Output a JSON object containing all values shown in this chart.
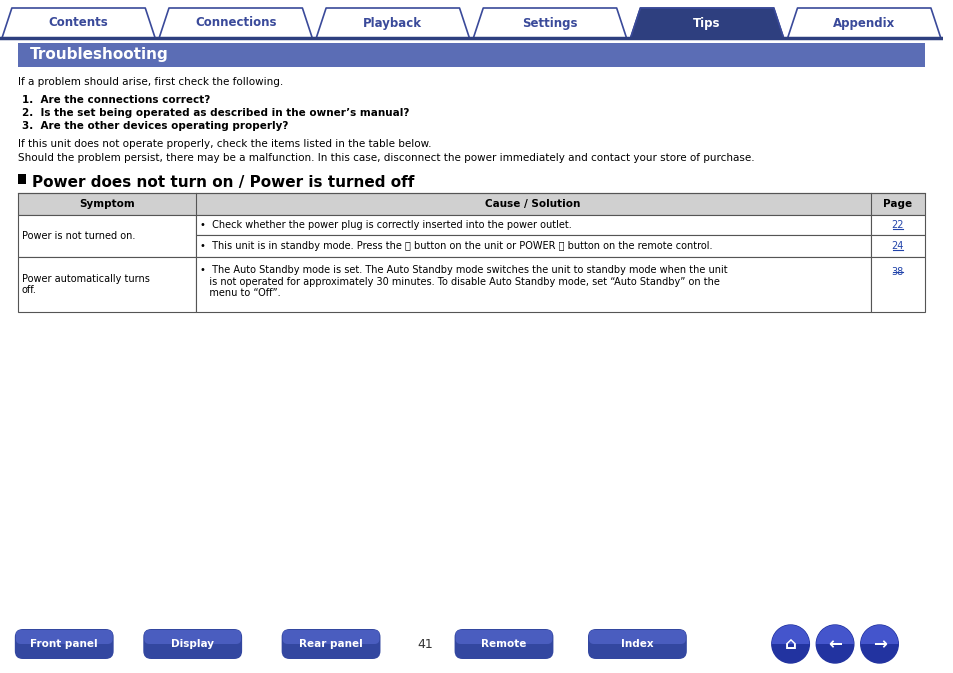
{
  "bg_color": "#ffffff",
  "tab_items": [
    "Contents",
    "Connections",
    "Playback",
    "Settings",
    "Tips",
    "Appendix"
  ],
  "active_tab": "Tips",
  "active_tab_color": "#2e3f7f",
  "inactive_tab_color": "#ffffff",
  "tab_border_color": "#3a4a9a",
  "tab_text_color_active": "#ffffff",
  "tab_text_color_inactive": "#3a4a9a",
  "tab_line_color": "#2e3f7f",
  "section_title": "Troubleshooting",
  "section_title_bg": "#5b6db5",
  "section_title_color": "#ffffff",
  "intro_text": "If a problem should arise, first check the following.",
  "bold_items": [
    "1.  Are the connections correct?",
    "2.  Is the set being operated as described in the owner’s manual?",
    "3.  Are the other devices operating properly?"
  ],
  "para2": "If this unit does not operate properly, check the items listed in the table below.",
  "para3": "Should the problem persist, there may be a malfunction. In this case, disconnect the power immediately and contact your store of purchase.",
  "subsection_title": "Power does not turn on / Power is turned off",
  "table_header": [
    "Symptom",
    "Cause / Solution",
    "Page"
  ],
  "table_header_bg": "#d0d0d0",
  "cause1": "•  Check whether the power plug is correctly inserted into the power outlet.",
  "cause2": "•  This unit is in standby mode. Press the ⏻ button on the unit or POWER ⏻ button on the remote control.",
  "cause3_line1": "•  The Auto Standby mode is set. The Auto Standby mode switches the unit to standby mode when the unit",
  "cause3_line2": "   is not operated for approximately 30 minutes. To disable Auto Standby mode, set “Auto Standby” on the",
  "cause3_line3": "   menu to “Off”.",
  "symptom1": "Power is not turned on.",
  "symptom2_line1": "Power automatically turns",
  "symptom2_line2": "off.",
  "page1": "22",
  "page2": "24",
  "page3": "38",
  "page_number": "41",
  "bottom_buttons": [
    "Front panel",
    "Display",
    "Rear panel",
    "Remote",
    "Index"
  ],
  "bottom_button_color": "#3347a0",
  "bottom_button_text_color": "#ffffff",
  "link_color": "#2244aa"
}
